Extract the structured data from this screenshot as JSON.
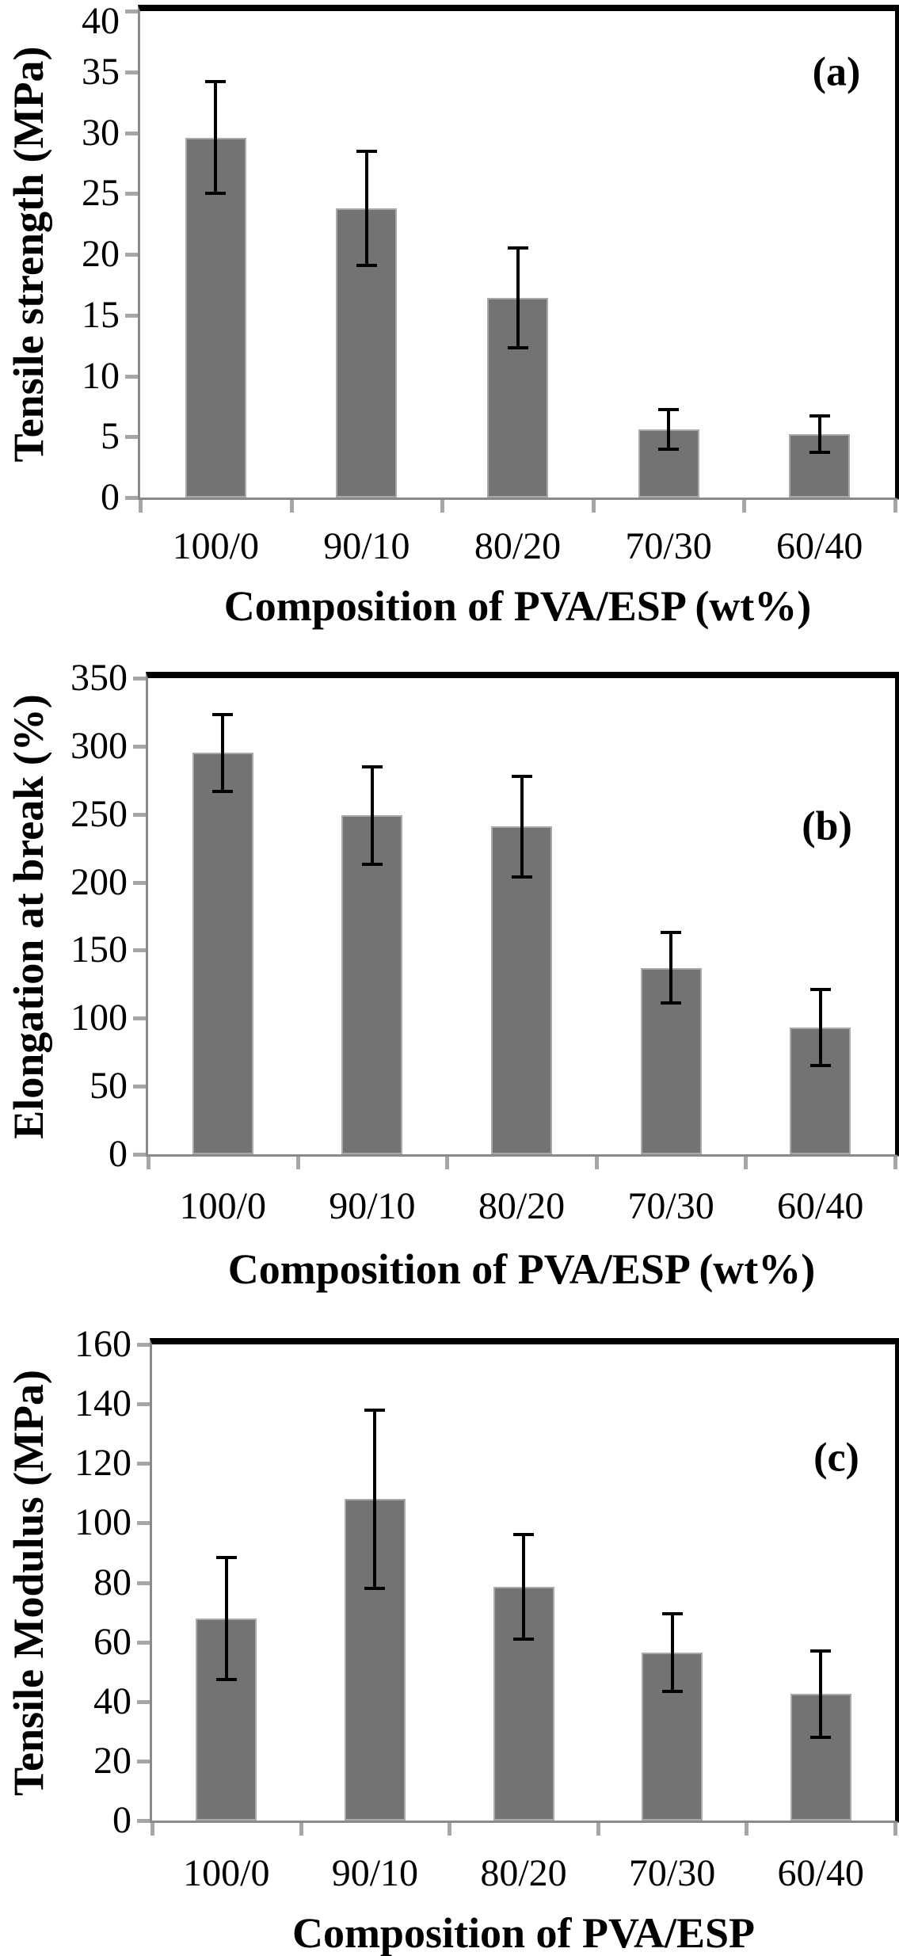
{
  "figure": {
    "background": "#ffffff"
  },
  "style": {
    "bar_fill": "#737373",
    "bar_outline": "#a9a9a9",
    "axis_line": "#8a8a8a",
    "tick_mark": "#a6a6a6",
    "frame": "#000000",
    "error_bar": "#000000",
    "text": "#000000"
  },
  "chart_data": [
    {
      "type": "bar",
      "panel_label": "(a)",
      "ylabel": "Tensile strength (MPa)",
      "xlabel": "Composition of PVA/ESP (wt%)",
      "categories": [
        "100/0",
        "90/10",
        "80/20",
        "70/30",
        "60/40"
      ],
      "values": [
        29.6,
        23.8,
        16.4,
        5.6,
        5.2
      ],
      "errors": [
        4.6,
        4.7,
        4.1,
        1.6,
        1.5
      ],
      "ylim": [
        0,
        40
      ],
      "yticks": [
        0,
        5,
        10,
        15,
        20,
        25,
        30,
        35,
        40
      ],
      "grid": "off",
      "legend": "none"
    },
    {
      "type": "bar",
      "panel_label": "(b)",
      "ylabel": "Elongation at break (%)",
      "xlabel": "Composition of PVA/ESP (wt%)",
      "categories": [
        "100/0",
        "90/10",
        "80/20",
        "70/30",
        "60/40"
      ],
      "values": [
        295,
        249,
        241,
        137,
        93
      ],
      "errors": [
        28,
        36,
        37,
        26,
        28
      ],
      "ylim": [
        0,
        350
      ],
      "yticks": [
        0,
        50,
        100,
        150,
        200,
        250,
        300,
        350
      ],
      "grid": "off",
      "legend": "none"
    },
    {
      "type": "bar",
      "panel_label": "(c)",
      "ylabel": "Tensile Modulus (MPa)",
      "xlabel": "Composition of PVA/ESP",
      "categories": [
        "100/0",
        "90/10",
        "80/20",
        "70/30",
        "60/40"
      ],
      "values": [
        68,
        108,
        78.5,
        56.5,
        42.5
      ],
      "errors": [
        20.5,
        30,
        17.5,
        13,
        14.5
      ],
      "ylim": [
        0,
        160
      ],
      "yticks": [
        0,
        20,
        40,
        60,
        80,
        100,
        120,
        140,
        160
      ],
      "grid": "off",
      "legend": "none"
    }
  ]
}
